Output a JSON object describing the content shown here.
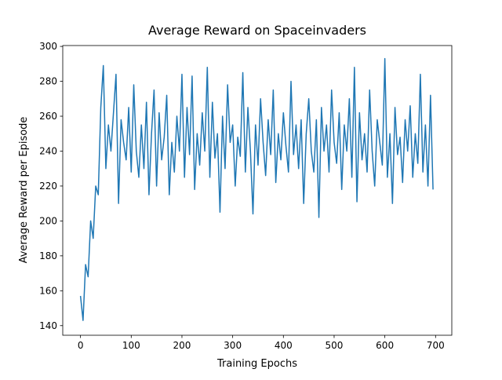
{
  "chart_data": {
    "type": "line",
    "title": "Average Reward on Spaceinvaders",
    "x_label": "Training Epochs",
    "y_label": "Average Reward per Episode",
    "color": "#1f77b4",
    "xlim": [
      -35,
      732
    ],
    "xticks": [
      0,
      100,
      200,
      300,
      400,
      500,
      600,
      700
    ],
    "ylim": [
      134.5,
      300.5
    ],
    "yticks": [
      140,
      160,
      180,
      200,
      220,
      240,
      260,
      280,
      300
    ],
    "x": [
      0,
      5,
      10,
      15,
      20,
      25,
      30,
      35,
      40,
      45,
      50,
      55,
      60,
      65,
      70,
      75,
      80,
      85,
      90,
      95,
      100,
      105,
      110,
      115,
      120,
      125,
      130,
      135,
      140,
      145,
      150,
      155,
      160,
      165,
      170,
      175,
      180,
      185,
      190,
      195,
      200,
      205,
      210,
      215,
      220,
      225,
      230,
      235,
      240,
      245,
      250,
      255,
      260,
      265,
      270,
      275,
      280,
      285,
      290,
      295,
      300,
      305,
      310,
      315,
      320,
      325,
      330,
      335,
      340,
      345,
      350,
      355,
      360,
      365,
      370,
      375,
      380,
      385,
      390,
      395,
      400,
      405,
      410,
      415,
      420,
      425,
      430,
      435,
      440,
      445,
      450,
      455,
      460,
      465,
      470,
      475,
      480,
      485,
      490,
      495,
      500,
      505,
      510,
      515,
      520,
      525,
      530,
      535,
      540,
      545,
      550,
      555,
      560,
      565,
      570,
      575,
      580,
      585,
      590,
      595,
      600,
      605,
      610,
      615,
      620,
      625,
      630,
      635,
      640,
      645,
      650,
      655,
      660,
      665,
      670,
      675,
      680,
      685,
      690,
      695
    ],
    "values": [
      157,
      143,
      175,
      168,
      200,
      190,
      220,
      215,
      265,
      289,
      230,
      255,
      240,
      262,
      284,
      210,
      258,
      245,
      235,
      265,
      228,
      278,
      240,
      225,
      255,
      230,
      268,
      215,
      250,
      275,
      220,
      262,
      235,
      248,
      272,
      215,
      245,
      228,
      260,
      240,
      284,
      225,
      265,
      238,
      283,
      218,
      250,
      232,
      262,
      240,
      288,
      225,
      268,
      236,
      250,
      205,
      260,
      230,
      278,
      245,
      255,
      220,
      248,
      237,
      285,
      228,
      265,
      240,
      204,
      255,
      232,
      270,
      245,
      226,
      258,
      238,
      275,
      222,
      250,
      235,
      262,
      243,
      228,
      280,
      238,
      255,
      230,
      258,
      210,
      250,
      270,
      240,
      228,
      258,
      202,
      265,
      240,
      255,
      228,
      275,
      245,
      233,
      262,
      218,
      255,
      240,
      270,
      225,
      288,
      211,
      262,
      235,
      250,
      228,
      275,
      240,
      220,
      258,
      245,
      232,
      293,
      225,
      250,
      210,
      265,
      238,
      248,
      222,
      258,
      240,
      266,
      225,
      250,
      233,
      284,
      228,
      255,
      220,
      272,
      218
    ]
  }
}
